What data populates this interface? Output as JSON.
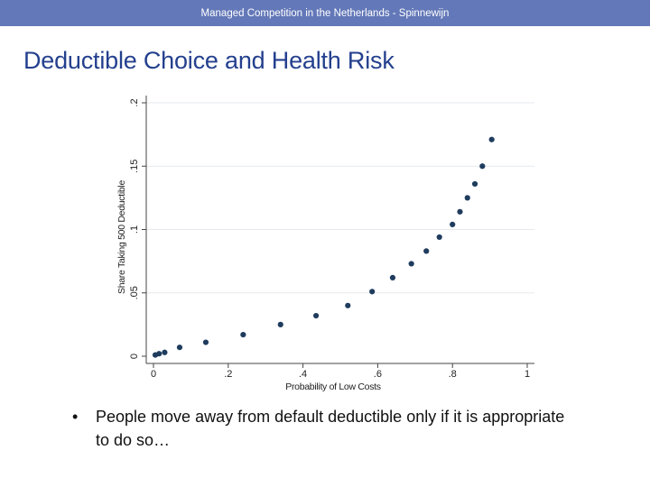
{
  "header": {
    "text": "Managed Competition in the Netherlands - Spinnewijn"
  },
  "slide": {
    "title": "Deductible Choice and Health Risk",
    "bullets": [
      {
        "mark": "•",
        "text": "People move away from default deductible only if it is appropriate to do so…"
      }
    ]
  },
  "colors": {
    "header_bg": "#6378b8",
    "title": "#24408e",
    "marker": "#1f3c5e",
    "grid": "#e6eaee"
  },
  "chart_data": {
    "type": "scatter",
    "title": "",
    "xlabel": "Probability of Low Costs",
    "ylabel": "Share Taking 500 Deductible",
    "xlim": [
      0,
      1
    ],
    "ylim": [
      0,
      0.2
    ],
    "xticks": [
      {
        "value": 0,
        "label": "0"
      },
      {
        "value": 0.2,
        "label": ".2"
      },
      {
        "value": 0.4,
        "label": ".4"
      },
      {
        "value": 0.6,
        "label": ".6"
      },
      {
        "value": 0.8,
        "label": ".8"
      },
      {
        "value": 1,
        "label": "1"
      }
    ],
    "yticks": [
      {
        "value": 0,
        "label": "0"
      },
      {
        "value": 0.05,
        "label": ".05"
      },
      {
        "value": 0.1,
        "label": ".1"
      },
      {
        "value": 0.15,
        "label": ".15"
      },
      {
        "value": 0.2,
        "label": ".2"
      }
    ],
    "grid": true,
    "points": [
      {
        "x": 0.005,
        "y": 0.001
      },
      {
        "x": 0.015,
        "y": 0.002
      },
      {
        "x": 0.03,
        "y": 0.003
      },
      {
        "x": 0.07,
        "y": 0.007
      },
      {
        "x": 0.14,
        "y": 0.011
      },
      {
        "x": 0.24,
        "y": 0.017
      },
      {
        "x": 0.34,
        "y": 0.025
      },
      {
        "x": 0.435,
        "y": 0.032
      },
      {
        "x": 0.52,
        "y": 0.04
      },
      {
        "x": 0.585,
        "y": 0.051
      },
      {
        "x": 0.64,
        "y": 0.062
      },
      {
        "x": 0.69,
        "y": 0.073
      },
      {
        "x": 0.73,
        "y": 0.083
      },
      {
        "x": 0.765,
        "y": 0.094
      },
      {
        "x": 0.8,
        "y": 0.104
      },
      {
        "x": 0.82,
        "y": 0.114
      },
      {
        "x": 0.84,
        "y": 0.125
      },
      {
        "x": 0.86,
        "y": 0.136
      },
      {
        "x": 0.88,
        "y": 0.15
      },
      {
        "x": 0.905,
        "y": 0.171
      }
    ]
  }
}
